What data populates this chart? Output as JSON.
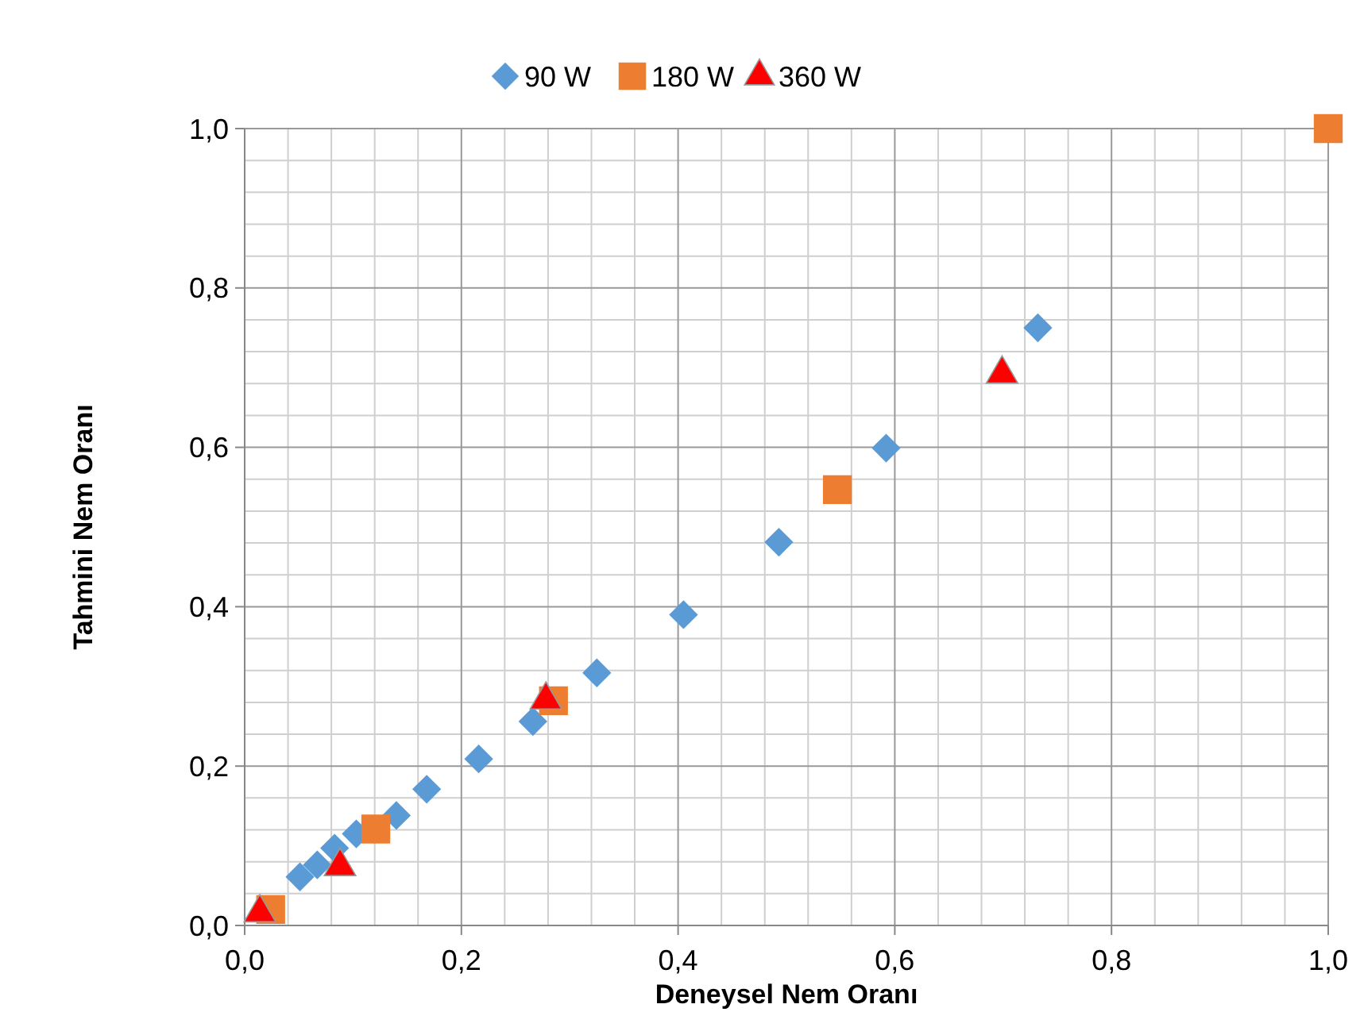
{
  "chart_data": {
    "type": "scatter",
    "xlabel": "Deneysel Nem Oranı",
    "ylabel": "Tahmini Nem Oranı",
    "xlim": [
      0,
      1
    ],
    "ylim": [
      0,
      1
    ],
    "xticks": [
      {
        "value": 0,
        "label": "0,0"
      },
      {
        "value": 0.2,
        "label": "0,2"
      },
      {
        "value": 0.4,
        "label": "0,4"
      },
      {
        "value": 0.6,
        "label": "0,6"
      },
      {
        "value": 0.8,
        "label": "0,8"
      },
      {
        "value": 1,
        "label": "1,0"
      }
    ],
    "yticks": [
      {
        "value": 0,
        "label": "0,0"
      },
      {
        "value": 0.2,
        "label": "0,2"
      },
      {
        "value": 0.4,
        "label": "0,4"
      },
      {
        "value": 0.6,
        "label": "0,6"
      },
      {
        "value": 0.8,
        "label": "0,8"
      },
      {
        "value": 1,
        "label": "1,0"
      }
    ],
    "grid": true,
    "legend": "top",
    "series": [
      {
        "name": "90 W",
        "color": "#5b9bd5",
        "marker": "diamond",
        "x": [
          0.051,
          0.067,
          0.083,
          0.103,
          0.14,
          0.168,
          0.216,
          0.266,
          0.325,
          0.405,
          0.493,
          0.592,
          0.732
        ],
        "values": [
          0.061,
          0.076,
          0.097,
          0.115,
          0.138,
          0.171,
          0.209,
          0.256,
          0.317,
          0.39,
          0.481,
          0.599,
          0.75
        ]
      },
      {
        "name": "180 W",
        "color": "#ed7d31",
        "marker": "square",
        "x": [
          0.024,
          0.121,
          0.285,
          0.547,
          1.0
        ],
        "values": [
          0.02,
          0.121,
          0.282,
          0.547,
          1.0
        ]
      },
      {
        "name": "360 W",
        "color": "#ff0000",
        "marker": "triangle",
        "x": [
          0.014,
          0.088,
          0.278,
          0.699
        ],
        "values": [
          0.016,
          0.074,
          0.283,
          0.692
        ]
      }
    ]
  }
}
